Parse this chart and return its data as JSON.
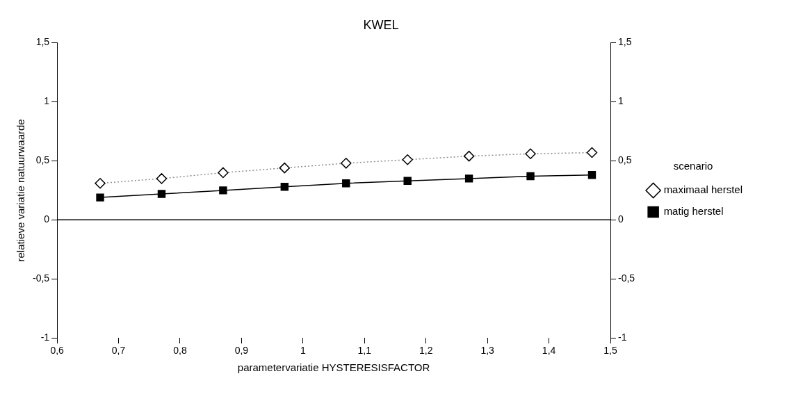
{
  "chart_data": {
    "type": "line",
    "title": "KWEL",
    "xlabel": "parametervariatie HYSTERESISFACTOR",
    "ylabel": "relatieve variatie natuurwaarde",
    "legend_title": "scenario",
    "legend": "right",
    "grid": false,
    "x": [
      0.67,
      0.77,
      0.87,
      0.97,
      1.07,
      1.17,
      1.27,
      1.37,
      1.47
    ],
    "series": [
      {
        "name": "maximaal herstel",
        "color": "#8c8c8c",
        "marker": "diamond",
        "line_style": "dotted",
        "values": [
          0.31,
          0.35,
          0.4,
          0.44,
          0.48,
          0.51,
          0.54,
          0.56,
          0.57
        ]
      },
      {
        "name": "matig herstel",
        "color": "#000000",
        "marker": "square",
        "line_style": "solid",
        "values": [
          0.19,
          0.22,
          0.25,
          0.28,
          0.31,
          0.33,
          0.35,
          0.37,
          0.38
        ]
      }
    ],
    "xlim": [
      0.6,
      1.5
    ],
    "xticks": [
      {
        "value": 0.6,
        "label": "0,6"
      },
      {
        "value": 0.7,
        "label": "0,7"
      },
      {
        "value": 0.8,
        "label": "0,8"
      },
      {
        "value": 0.9,
        "label": "0,9"
      },
      1,
      {
        "value": 1.1,
        "label": "1,1"
      },
      {
        "value": 1.2,
        "label": "1,2"
      },
      {
        "value": 1.3,
        "label": "1,3"
      },
      {
        "value": 1.4,
        "label": "1,4"
      },
      {
        "value": 1.5,
        "label": "1,5"
      }
    ],
    "ylim": [
      -1,
      1.5
    ],
    "yticks": [
      -1,
      {
        "value": -0.5,
        "label": "-0,5"
      },
      0,
      {
        "value": 0.5,
        "label": "0,5"
      },
      1,
      {
        "value": 1.5,
        "label": "1,5"
      }
    ],
    "y2lim": [
      -1,
      1.5
    ],
    "y2ticks": [
      -1,
      {
        "value": -0.5,
        "label": "-0,5"
      },
      0,
      {
        "value": 0.5,
        "label": "0,5"
      },
      1,
      {
        "value": 1.5,
        "label": "1,5"
      }
    ],
    "ref_lines": [
      {
        "axis": "y",
        "value": 0,
        "color": "#000000"
      }
    ]
  }
}
